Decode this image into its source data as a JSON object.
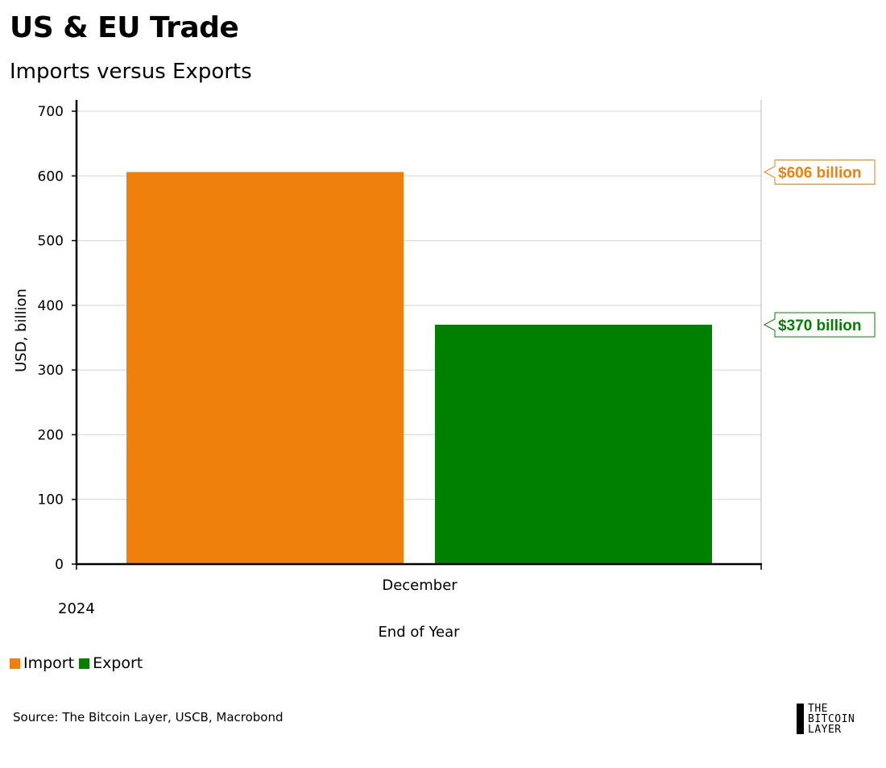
{
  "header": {
    "title": "US & EU Trade",
    "subtitle": "Imports versus Exports"
  },
  "chart_data": {
    "type": "bar",
    "categories": [
      "December"
    ],
    "year_label": "2024",
    "series": [
      {
        "name": "Import",
        "values": [
          606
        ],
        "color": "#f0800c",
        "annotation": "$606 billion"
      },
      {
        "name": "Export",
        "values": [
          370
        ],
        "color": "#008000",
        "annotation": "$370 billion"
      }
    ],
    "xlabel": "End of Year",
    "ylabel": "USD, billion",
    "ylim": [
      0,
      700
    ],
    "yticks": [
      "0",
      "100",
      "200",
      "300",
      "400",
      "500",
      "600",
      "700"
    ],
    "grid": true,
    "legend_placement": "bottom-left"
  },
  "footer": {
    "source": "Source: The Bitcoin Layer, USCB, Macrobond",
    "logo_lines": [
      "THE",
      "BITCOIN",
      "LAYER"
    ]
  }
}
